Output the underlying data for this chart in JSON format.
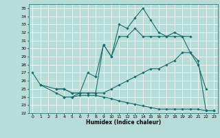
{
  "xlabel": "Humidex (Indice chaleur)",
  "xlim": [
    -0.5,
    23.5
  ],
  "ylim": [
    22,
    35.5
  ],
  "xticks": [
    0,
    1,
    2,
    3,
    4,
    5,
    6,
    7,
    8,
    9,
    10,
    11,
    12,
    13,
    14,
    15,
    16,
    17,
    18,
    19,
    20,
    21,
    22,
    23
  ],
  "yticks": [
    22,
    23,
    24,
    25,
    26,
    27,
    28,
    29,
    30,
    31,
    32,
    33,
    34,
    35
  ],
  "bg_color": "#b8ddd8",
  "grid_color": "#ffffff",
  "line_color": "#1a6b6b",
  "series": [
    {
      "x": [
        0,
        1,
        3,
        4,
        5,
        6,
        7,
        8,
        9,
        10,
        11,
        12,
        13,
        14,
        15,
        16,
        17,
        18,
        19,
        20,
        21,
        22
      ],
      "y": [
        27.0,
        25.5,
        25.0,
        25.0,
        24.5,
        24.5,
        27.0,
        26.5,
        30.5,
        29.0,
        33.0,
        32.5,
        33.8,
        35.0,
        33.5,
        32.0,
        31.5,
        32.0,
        31.5,
        29.5,
        28.0,
        25.0
      ]
    },
    {
      "x": [
        3,
        4,
        5,
        6,
        7,
        8,
        9,
        10,
        11,
        12,
        13,
        14,
        15,
        16,
        17,
        18,
        19,
        20
      ],
      "y": [
        25.0,
        25.0,
        24.5,
        24.5,
        24.5,
        24.5,
        30.5,
        29.0,
        31.5,
        31.5,
        32.5,
        31.5,
        31.5,
        31.5,
        31.5,
        31.5,
        31.5,
        31.5
      ]
    },
    {
      "x": [
        1,
        3,
        4,
        5,
        6,
        7,
        8,
        9,
        10,
        11,
        12,
        13,
        14,
        15,
        16,
        17,
        18,
        19,
        20,
        21,
        22,
        23
      ],
      "y": [
        25.5,
        24.5,
        24.0,
        24.0,
        24.5,
        24.5,
        24.5,
        24.5,
        25.0,
        25.5,
        26.0,
        26.5,
        27.0,
        27.5,
        27.5,
        28.0,
        28.5,
        29.5,
        29.5,
        28.5,
        22.3,
        22.3
      ]
    },
    {
      "x": [
        4,
        5,
        6,
        7,
        8,
        9,
        10,
        11,
        12,
        13,
        14,
        15,
        16,
        17,
        18,
        19,
        20,
        21,
        22,
        23
      ],
      "y": [
        24.0,
        24.0,
        24.2,
        24.2,
        24.2,
        24.0,
        23.8,
        23.5,
        23.3,
        23.1,
        22.9,
        22.7,
        22.5,
        22.5,
        22.5,
        22.5,
        22.5,
        22.5,
        22.3,
        22.3
      ]
    }
  ]
}
